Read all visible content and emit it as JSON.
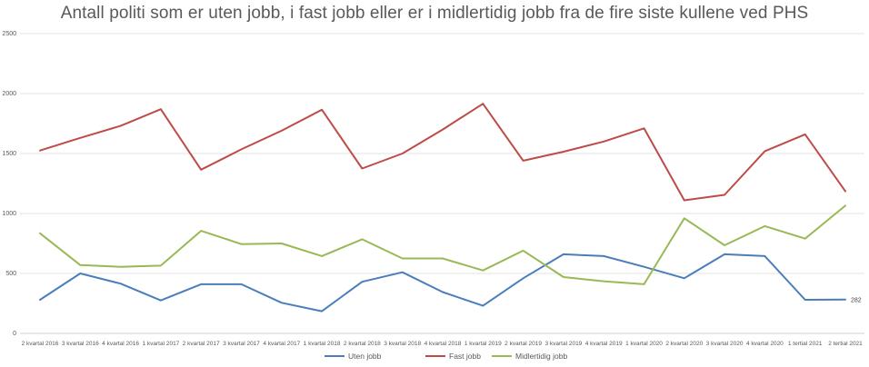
{
  "chart_data": {
    "type": "line",
    "title": "Antall politi som er uten jobb, i fast jobb eller er i midlertidig jobb fra de fire siste kullene ved PHS",
    "xlabel": "",
    "ylabel": "",
    "ylim": [
      0,
      2500
    ],
    "yticks": [
      "0",
      "500",
      "1000",
      "1500",
      "2000",
      "2500"
    ],
    "grid": true,
    "legend_position": "bottom",
    "categories": [
      "2 kvartal 2016",
      "3 kvartal 2016",
      "4 kvartal 2016",
      "1 kvartal 2017",
      "2 kvartal 2017",
      "3 kvartal 2017",
      "4 kvartal 2017",
      "1 kvartal 2018",
      "2 kvartal 2018",
      "3 kvartal 2018",
      "4 kvartal 2018",
      "1 kvartal 2019",
      "2 kvartal 2019",
      "3 kvartal 2019",
      "4 kvartal 2019",
      "1 kvartal 2020",
      "2 kvartal 2020",
      "3 kvartal 2020",
      "4 kvartal 2020",
      "1 tertial 2021",
      "2 tertial 2021"
    ],
    "series": [
      {
        "name": "Uten jobb",
        "color": "#4a7ebb",
        "values": [
          280,
          500,
          415,
          275,
          410,
          410,
          255,
          185,
          430,
          510,
          345,
          230,
          460,
          660,
          645,
          555,
          460,
          660,
          645,
          280,
          282
        ]
      },
      {
        "name": "Fast jobb",
        "color": "#be4b48",
        "values": [
          1525,
          1630,
          1730,
          1870,
          1365,
          1535,
          1690,
          1865,
          1375,
          1500,
          1700,
          1915,
          1440,
          1515,
          1600,
          1710,
          1110,
          1155,
          1520,
          1660,
          1185
        ]
      },
      {
        "name": "Midlertidig jobb",
        "color": "#98b954",
        "values": [
          835,
          570,
          555,
          565,
          855,
          745,
          750,
          645,
          785,
          625,
          625,
          525,
          690,
          470,
          435,
          410,
          960,
          735,
          895,
          790,
          1065
        ]
      }
    ],
    "annotations": [
      {
        "series": "Uten jobb",
        "category": "2 tertial 2021",
        "text": "282"
      }
    ]
  }
}
